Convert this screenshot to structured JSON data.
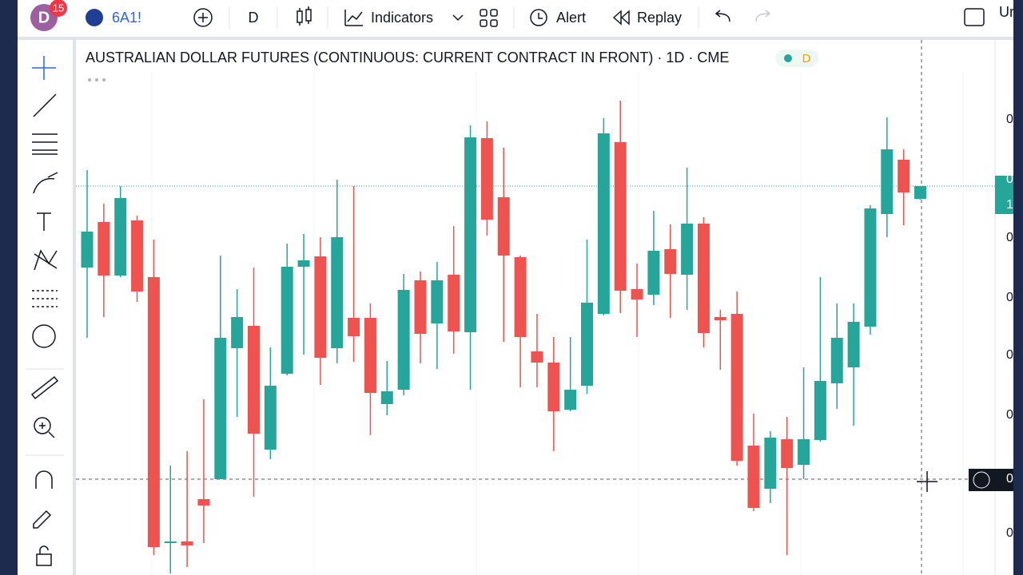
{
  "toolbar": {
    "avatar": "D",
    "badge": "15",
    "symbol": "6A1!",
    "interval": "D",
    "indicators": "Indicators",
    "alert": "Alert",
    "replay": "Replay",
    "cut_label": "Ur"
  },
  "chart_data": {
    "type": "candlestick",
    "title": "AUSTRALIAN DOLLAR FUTURES (CONTINUOUS: CURRENT CONTRACT IN FRONT) · 1D · CME",
    "status_badge": "D",
    "up_color": "#26a69a",
    "down_color": "#ef5350",
    "ylim": [
      0,
      620
    ],
    "open": [
      385,
      442,
      375,
      444,
      373,
      40,
      42,
      95,
      120,
      284,
      312,
      157,
      252,
      386,
      399,
      284,
      322,
      322,
      214,
      232,
      369,
      315,
      376,
      304,
      547,
      473,
      398,
      280,
      266,
      207,
      237,
      327,
      542,
      358,
      351,
      408,
      376,
      440,
      323,
      327,
      162,
      108,
      170,
      138,
      169,
      240,
      260,
      311,
      452,
      520,
      471
    ],
    "high": [
      507,
      465,
      487,
      450,
      420,
      137,
      155,
      220,
      400,
      358,
      385,
      285,
      415,
      427,
      423,
      495,
      487,
      340,
      268,
      377,
      380,
      392,
      437,
      563,
      568,
      535,
      400,
      327,
      298,
      298,
      420,
      572,
      594,
      390,
      456,
      439,
      510,
      448,
      332,
      355,
      202,
      180,
      198,
      260,
      373,
      340,
      340,
      463,
      573,
      533,
      487
    ],
    "low": [
      297,
      323,
      373,
      342,
      25,
      2,
      10,
      40,
      120,
      198,
      98,
      145,
      250,
      276,
      238,
      265,
      267,
      175,
      200,
      225,
      265,
      258,
      277,
      232,
      425,
      292,
      235,
      235,
      155,
      205,
      227,
      325,
      328,
      298,
      338,
      322,
      332,
      285,
      257,
      137,
      80,
      90,
      25,
      120,
      167,
      208,
      187,
      301,
      423,
      438,
      470
    ],
    "close": [
      430,
      375,
      472,
      355,
      35,
      42,
      37,
      87,
      297,
      323,
      177,
      237,
      386,
      394,
      272,
      423,
      299,
      228,
      230,
      357,
      302,
      369,
      305,
      548,
      445,
      400,
      298,
      266,
      205,
      232,
      341,
      553,
      356,
      345,
      406,
      377,
      440,
      303,
      319,
      143,
      84,
      172,
      134,
      170,
      243,
      297,
      317,
      459,
      533,
      479,
      487
    ]
  },
  "price_scale_labels": [
    "0",
    "0",
    "1",
    "0",
    "0",
    "0",
    "0",
    "0",
    "0"
  ]
}
